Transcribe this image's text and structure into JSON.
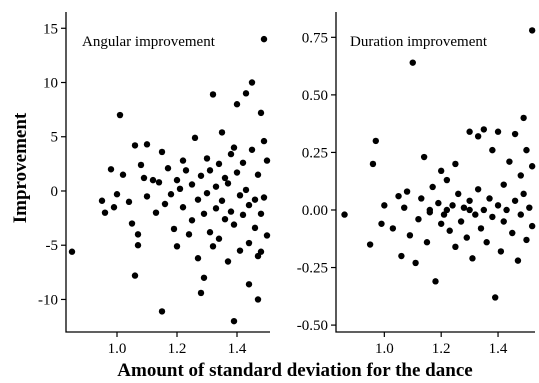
{
  "figure": {
    "ylabel": "Improvement",
    "xlabel": "Amount of standard deviation for the dance"
  },
  "chart_data": [
    {
      "type": "scatter",
      "title": "Angular improvement",
      "xlim": [
        0.83,
        1.51
      ],
      "ylim": [
        -13.0,
        16.5
      ],
      "xticks": [
        1.0,
        1.2,
        1.4
      ],
      "xtick_labels": [
        "1.0",
        "1.2",
        "1.4"
      ],
      "yticks": [
        15,
        10,
        5,
        0,
        -5,
        -10
      ],
      "ytick_labels": [
        "15",
        "10",
        "5",
        "0",
        "-5",
        "-10"
      ],
      "points": [
        [
          0.85,
          -5.6
        ],
        [
          0.95,
          -0.9
        ],
        [
          0.96,
          -2.0
        ],
        [
          0.98,
          2.0
        ],
        [
          0.99,
          -1.5
        ],
        [
          1.0,
          -0.3
        ],
        [
          1.01,
          7.0
        ],
        [
          1.02,
          1.5
        ],
        [
          1.04,
          -1.0
        ],
        [
          1.05,
          -3.0
        ],
        [
          1.06,
          4.2
        ],
        [
          1.07,
          -5.0
        ],
        [
          1.06,
          -7.8
        ],
        [
          1.07,
          -4.0
        ],
        [
          1.08,
          2.4
        ],
        [
          1.09,
          1.2
        ],
        [
          1.1,
          -0.5
        ],
        [
          1.1,
          4.3
        ],
        [
          1.12,
          1.0
        ],
        [
          1.13,
          -2.0
        ],
        [
          1.14,
          0.8
        ],
        [
          1.15,
          3.6
        ],
        [
          1.16,
          -1.2
        ],
        [
          1.17,
          2.1
        ],
        [
          1.15,
          -11.1
        ],
        [
          1.18,
          -0.3
        ],
        [
          1.19,
          -3.5
        ],
        [
          1.2,
          1.0
        ],
        [
          1.2,
          -5.1
        ],
        [
          1.21,
          0.2
        ],
        [
          1.22,
          2.8
        ],
        [
          1.22,
          -1.5
        ],
        [
          1.23,
          1.9
        ],
        [
          1.24,
          -4.0
        ],
        [
          1.25,
          0.6
        ],
        [
          1.25,
          -2.7
        ],
        [
          1.26,
          4.9
        ],
        [
          1.27,
          -0.8
        ],
        [
          1.27,
          -6.2
        ],
        [
          1.28,
          1.4
        ],
        [
          1.28,
          -9.4
        ],
        [
          1.29,
          -2.1
        ],
        [
          1.29,
          -8.0
        ],
        [
          1.3,
          3.0
        ],
        [
          1.3,
          -0.2
        ],
        [
          1.31,
          -3.8
        ],
        [
          1.31,
          1.9
        ],
        [
          1.32,
          -5.1
        ],
        [
          1.32,
          8.9
        ],
        [
          1.33,
          0.4
        ],
        [
          1.33,
          -1.6
        ],
        [
          1.34,
          2.5
        ],
        [
          1.34,
          -4.4
        ],
        [
          1.35,
          5.4
        ],
        [
          1.35,
          -0.9
        ],
        [
          1.36,
          1.2
        ],
        [
          1.36,
          -2.6
        ],
        [
          1.37,
          -6.5
        ],
        [
          1.37,
          0.7
        ],
        [
          1.38,
          3.4
        ],
        [
          1.38,
          -1.9
        ],
        [
          1.39,
          4.0
        ],
        [
          1.39,
          -3.1
        ],
        [
          1.4,
          1.7
        ],
        [
          1.4,
          8.0
        ],
        [
          1.41,
          -0.4
        ],
        [
          1.41,
          -5.5
        ],
        [
          1.42,
          2.6
        ],
        [
          1.42,
          -2.2
        ],
        [
          1.43,
          9.0
        ],
        [
          1.43,
          0.1
        ],
        [
          1.44,
          -1.3
        ],
        [
          1.44,
          -4.8
        ],
        [
          1.45,
          3.8
        ],
        [
          1.45,
          10.0
        ],
        [
          1.46,
          -0.8
        ],
        [
          1.46,
          -3.4
        ],
        [
          1.47,
          1.5
        ],
        [
          1.47,
          -6.0
        ],
        [
          1.48,
          7.2
        ],
        [
          1.48,
          -2.1
        ],
        [
          1.49,
          4.6
        ],
        [
          1.49,
          -0.6
        ],
        [
          1.5,
          2.8
        ],
        [
          1.5,
          -4.1
        ],
        [
          1.49,
          14.0
        ],
        [
          1.47,
          -10.0
        ],
        [
          1.39,
          -12.0
        ],
        [
          1.44,
          -8.6
        ],
        [
          1.48,
          -5.6
        ]
      ]
    },
    {
      "type": "scatter",
      "title": "Duration improvement",
      "xlim": [
        0.83,
        1.53
      ],
      "ylim": [
        -0.53,
        0.86
      ],
      "xticks": [
        1.0,
        1.2,
        1.4
      ],
      "xtick_labels": [
        "1.0",
        "1.2",
        "1.4"
      ],
      "yticks": [
        0.75,
        0.5,
        0.25,
        0.0,
        -0.25,
        -0.5
      ],
      "ytick_labels": [
        "0.75",
        "0.50",
        "0.25",
        "0.00",
        "-0.25",
        "-0.50"
      ],
      "points": [
        [
          0.86,
          -0.02
        ],
        [
          0.95,
          -0.15
        ],
        [
          0.96,
          0.2
        ],
        [
          0.97,
          0.3
        ],
        [
          0.99,
          -0.06
        ],
        [
          1.0,
          0.02
        ],
        [
          1.03,
          -0.08
        ],
        [
          1.05,
          0.06
        ],
        [
          1.06,
          -0.2
        ],
        [
          1.07,
          0.01
        ],
        [
          1.08,
          0.08
        ],
        [
          1.09,
          -0.11
        ],
        [
          1.1,
          0.64
        ],
        [
          1.11,
          -0.23
        ],
        [
          1.12,
          -0.04
        ],
        [
          1.13,
          0.05
        ],
        [
          1.14,
          0.23
        ],
        [
          1.15,
          -0.14
        ],
        [
          1.16,
          -0.01
        ],
        [
          1.17,
          0.1
        ],
        [
          1.18,
          -0.31
        ],
        [
          1.19,
          0.03
        ],
        [
          1.2,
          -0.06
        ],
        [
          1.2,
          0.17
        ],
        [
          1.21,
          -0.02
        ],
        [
          1.22,
          0.13
        ],
        [
          1.23,
          -0.09
        ],
        [
          1.24,
          0.02
        ],
        [
          1.25,
          -0.16
        ],
        [
          1.26,
          0.07
        ],
        [
          1.27,
          -0.05
        ],
        [
          1.28,
          0.01
        ],
        [
          1.29,
          -0.12
        ],
        [
          1.3,
          0.34
        ],
        [
          1.3,
          0.04
        ],
        [
          1.31,
          -0.21
        ],
        [
          1.32,
          -0.02
        ],
        [
          1.33,
          0.09
        ],
        [
          1.34,
          -0.08
        ],
        [
          1.35,
          0.35
        ],
        [
          1.35,
          0.0
        ],
        [
          1.36,
          -0.14
        ],
        [
          1.37,
          0.05
        ],
        [
          1.38,
          -0.03
        ],
        [
          1.38,
          0.26
        ],
        [
          1.39,
          -0.38
        ],
        [
          1.4,
          0.02
        ],
        [
          1.41,
          -0.18
        ],
        [
          1.42,
          0.11
        ],
        [
          1.42,
          -0.05
        ],
        [
          1.43,
          0.0
        ],
        [
          1.44,
          0.21
        ],
        [
          1.45,
          -0.1
        ],
        [
          1.46,
          0.04
        ],
        [
          1.46,
          0.33
        ],
        [
          1.47,
          -0.22
        ],
        [
          1.48,
          0.15
        ],
        [
          1.48,
          -0.02
        ],
        [
          1.49,
          0.4
        ],
        [
          1.49,
          0.07
        ],
        [
          1.5,
          -0.13
        ],
        [
          1.5,
          0.26
        ],
        [
          1.51,
          0.01
        ],
        [
          1.52,
          -0.07
        ],
        [
          1.52,
          0.19
        ],
        [
          1.52,
          0.78
        ],
        [
          1.4,
          0.34
        ],
        [
          1.33,
          0.32
        ],
        [
          1.25,
          0.2
        ],
        [
          1.16,
          0.0
        ],
        [
          1.22,
          0.0
        ],
        [
          1.3,
          0.0
        ]
      ]
    }
  ]
}
